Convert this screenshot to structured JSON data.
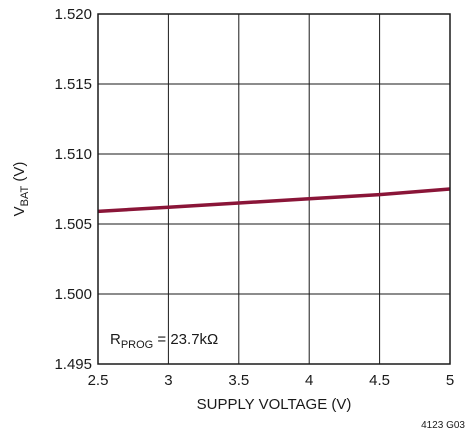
{
  "chart_data": {
    "type": "line",
    "xlabel": "SUPPLY VOLTAGE (V)",
    "ylabel": {
      "main": "V",
      "sub": "BAT",
      "unit": " (V)"
    },
    "xlim": [
      2.5,
      5
    ],
    "ylim": [
      1.495,
      1.52
    ],
    "x_ticks": [
      "2.5",
      "3",
      "3.5",
      "4",
      "4.5",
      "5"
    ],
    "y_ticks": [
      "1.495",
      "1.500",
      "1.505",
      "1.510",
      "1.515",
      "1.520"
    ],
    "grid": true,
    "series": [
      {
        "x": [
          2.5,
          3.0,
          3.5,
          4.0,
          4.5,
          5.0
        ],
        "y": [
          1.5059,
          1.5062,
          1.5065,
          1.5068,
          1.5071,
          1.5075
        ],
        "color": "#8a1538"
      }
    ],
    "annotation": {
      "main": "R",
      "sub": "PROG",
      "rest": " = 23.7kΩ"
    },
    "figure_id": "4123 G03"
  }
}
